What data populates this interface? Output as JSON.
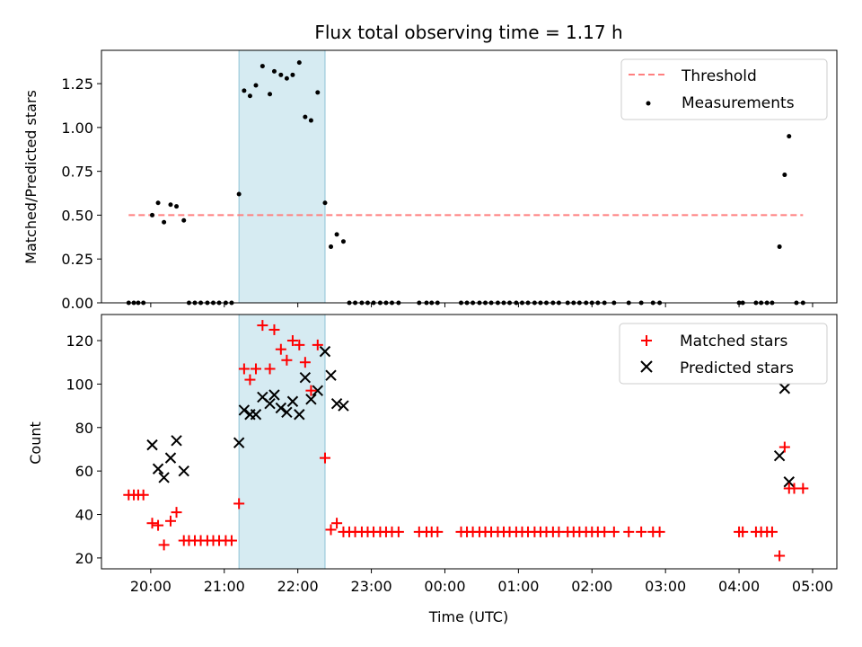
{
  "chart_data": [
    {
      "type": "scatter",
      "title": "Flux total observing time = 1.17 h",
      "xlabel": "",
      "ylabel": "Matched/Predicted stars",
      "xlim": [
        19.33,
        29.33
      ],
      "ylim": [
        0,
        1.44
      ],
      "yticks": [
        0.0,
        0.25,
        0.5,
        0.75,
        1.0,
        1.25
      ],
      "ytick_labels": [
        "0.00",
        "0.25",
        "0.50",
        "0.75",
        "1.00",
        "1.25"
      ],
      "highlight_span": [
        21.2,
        22.37
      ],
      "legend": {
        "position": "top-right",
        "entries": [
          "Threshold",
          "Measurements"
        ]
      },
      "threshold": {
        "name": "Threshold",
        "x": [
          19.7,
          28.87
        ],
        "y": 0.5,
        "color": "#ff7f7f"
      },
      "series": [
        {
          "name": "Measurements",
          "color": "#000000",
          "points": [
            [
              19.7,
              0
            ],
            [
              19.77,
              0
            ],
            [
              19.83,
              0
            ],
            [
              19.9,
              0
            ],
            [
              20.02,
              0.5
            ],
            [
              20.1,
              0.57
            ],
            [
              20.18,
              0.46
            ],
            [
              20.27,
              0.56
            ],
            [
              20.35,
              0.55
            ],
            [
              20.45,
              0.47
            ],
            [
              20.52,
              0
            ],
            [
              20.6,
              0
            ],
            [
              20.68,
              0
            ],
            [
              20.77,
              0
            ],
            [
              20.85,
              0
            ],
            [
              20.93,
              0
            ],
            [
              21.02,
              0
            ],
            [
              21.1,
              0
            ],
            [
              21.2,
              0.62
            ],
            [
              21.27,
              1.21
            ],
            [
              21.35,
              1.18
            ],
            [
              21.43,
              1.24
            ],
            [
              21.52,
              1.35
            ],
            [
              21.62,
              1.19
            ],
            [
              21.68,
              1.32
            ],
            [
              21.77,
              1.3
            ],
            [
              21.85,
              1.28
            ],
            [
              21.93,
              1.3
            ],
            [
              22.02,
              1.37
            ],
            [
              22.1,
              1.06
            ],
            [
              22.18,
              1.04
            ],
            [
              22.27,
              1.2
            ],
            [
              22.37,
              0.57
            ],
            [
              22.45,
              0.32
            ],
            [
              22.53,
              0.39
            ],
            [
              22.62,
              0.35
            ],
            [
              22.7,
              0
            ],
            [
              22.78,
              0
            ],
            [
              22.87,
              0
            ],
            [
              22.95,
              0
            ],
            [
              23.03,
              0
            ],
            [
              23.12,
              0
            ],
            [
              23.2,
              0
            ],
            [
              23.28,
              0
            ],
            [
              23.37,
              0
            ],
            [
              23.65,
              0
            ],
            [
              23.75,
              0
            ],
            [
              23.82,
              0
            ],
            [
              23.9,
              0
            ],
            [
              24.22,
              0
            ],
            [
              24.3,
              0
            ],
            [
              24.38,
              0
            ],
            [
              24.47,
              0
            ],
            [
              24.55,
              0
            ],
            [
              24.63,
              0
            ],
            [
              24.72,
              0
            ],
            [
              24.8,
              0
            ],
            [
              24.88,
              0
            ],
            [
              24.97,
              0
            ],
            [
              25.05,
              0
            ],
            [
              25.13,
              0
            ],
            [
              25.22,
              0
            ],
            [
              25.3,
              0
            ],
            [
              25.38,
              0
            ],
            [
              25.47,
              0
            ],
            [
              25.55,
              0
            ],
            [
              25.67,
              0
            ],
            [
              25.75,
              0
            ],
            [
              25.83,
              0
            ],
            [
              25.92,
              0
            ],
            [
              26.0,
              0
            ],
            [
              26.08,
              0
            ],
            [
              26.17,
              0
            ],
            [
              26.3,
              0
            ],
            [
              26.5,
              0
            ],
            [
              26.67,
              0
            ],
            [
              26.83,
              0
            ],
            [
              26.92,
              0
            ],
            [
              28.0,
              0
            ],
            [
              28.05,
              0
            ],
            [
              28.23,
              0
            ],
            [
              28.3,
              0
            ],
            [
              28.38,
              0
            ],
            [
              28.45,
              0
            ],
            [
              28.55,
              0.32
            ],
            [
              28.62,
              0.73
            ],
            [
              28.68,
              0.95
            ],
            [
              28.78,
              0
            ],
            [
              28.87,
              0
            ]
          ]
        }
      ]
    },
    {
      "type": "scatter",
      "title": "",
      "xlabel": "Time (UTC)",
      "ylabel": "Count",
      "xlim": [
        19.33,
        29.33
      ],
      "ylim": [
        15,
        132
      ],
      "yticks": [
        20,
        40,
        60,
        80,
        100,
        120
      ],
      "ytick_labels": [
        "20",
        "40",
        "60",
        "80",
        "100",
        "120"
      ],
      "xticks": [
        20,
        21,
        22,
        23,
        24,
        25,
        26,
        27,
        28,
        29
      ],
      "xtick_labels": [
        "20:00",
        "21:00",
        "22:00",
        "23:00",
        "00:00",
        "01:00",
        "02:00",
        "03:00",
        "04:00",
        "05:00"
      ],
      "highlight_span": [
        21.2,
        22.37
      ],
      "legend": {
        "position": "top-right",
        "entries": [
          "Matched stars",
          "Predicted stars"
        ]
      },
      "series": [
        {
          "name": "Matched stars",
          "marker": "plus",
          "color": "#ff0000",
          "points": [
            [
              19.7,
              49
            ],
            [
              19.77,
              49
            ],
            [
              19.83,
              49
            ],
            [
              19.9,
              49
            ],
            [
              20.02,
              36
            ],
            [
              20.1,
              35
            ],
            [
              20.18,
              26
            ],
            [
              20.27,
              37
            ],
            [
              20.35,
              41
            ],
            [
              20.45,
              28
            ],
            [
              20.52,
              28
            ],
            [
              20.6,
              28
            ],
            [
              20.68,
              28
            ],
            [
              20.77,
              28
            ],
            [
              20.85,
              28
            ],
            [
              20.93,
              28
            ],
            [
              21.02,
              28
            ],
            [
              21.1,
              28
            ],
            [
              21.2,
              45
            ],
            [
              21.27,
              107
            ],
            [
              21.35,
              102
            ],
            [
              21.43,
              107
            ],
            [
              21.52,
              127
            ],
            [
              21.62,
              107
            ],
            [
              21.68,
              125
            ],
            [
              21.77,
              116
            ],
            [
              21.85,
              111
            ],
            [
              21.93,
              120
            ],
            [
              22.02,
              118
            ],
            [
              22.1,
              110
            ],
            [
              22.18,
              97
            ],
            [
              22.27,
              118
            ],
            [
              22.37,
              66
            ],
            [
              22.45,
              33
            ],
            [
              22.53,
              36
            ],
            [
              22.62,
              32
            ],
            [
              22.7,
              32
            ],
            [
              22.78,
              32
            ],
            [
              22.87,
              32
            ],
            [
              22.95,
              32
            ],
            [
              23.03,
              32
            ],
            [
              23.12,
              32
            ],
            [
              23.2,
              32
            ],
            [
              23.28,
              32
            ],
            [
              23.37,
              32
            ],
            [
              23.65,
              32
            ],
            [
              23.75,
              32
            ],
            [
              23.82,
              32
            ],
            [
              23.9,
              32
            ],
            [
              24.22,
              32
            ],
            [
              24.3,
              32
            ],
            [
              24.38,
              32
            ],
            [
              24.47,
              32
            ],
            [
              24.55,
              32
            ],
            [
              24.63,
              32
            ],
            [
              24.72,
              32
            ],
            [
              24.8,
              32
            ],
            [
              24.88,
              32
            ],
            [
              24.97,
              32
            ],
            [
              25.05,
              32
            ],
            [
              25.13,
              32
            ],
            [
              25.22,
              32
            ],
            [
              25.3,
              32
            ],
            [
              25.38,
              32
            ],
            [
              25.47,
              32
            ],
            [
              25.55,
              32
            ],
            [
              25.67,
              32
            ],
            [
              25.75,
              32
            ],
            [
              25.83,
              32
            ],
            [
              25.92,
              32
            ],
            [
              26.0,
              32
            ],
            [
              26.08,
              32
            ],
            [
              26.17,
              32
            ],
            [
              26.3,
              32
            ],
            [
              26.5,
              32
            ],
            [
              26.67,
              32
            ],
            [
              26.83,
              32
            ],
            [
              26.92,
              32
            ],
            [
              28.0,
              32
            ],
            [
              28.05,
              32
            ],
            [
              28.23,
              32
            ],
            [
              28.3,
              32
            ],
            [
              28.38,
              32
            ],
            [
              28.45,
              32
            ],
            [
              28.55,
              21
            ],
            [
              28.62,
              71
            ],
            [
              28.68,
              52
            ],
            [
              28.75,
              52
            ],
            [
              28.87,
              52
            ]
          ]
        },
        {
          "name": "Predicted stars",
          "marker": "x",
          "color": "#000000",
          "points": [
            [
              20.02,
              72
            ],
            [
              20.1,
              61
            ],
            [
              20.18,
              57
            ],
            [
              20.27,
              66
            ],
            [
              20.35,
              74
            ],
            [
              20.45,
              60
            ],
            [
              21.2,
              73
            ],
            [
              21.27,
              88
            ],
            [
              21.35,
              86
            ],
            [
              21.43,
              86
            ],
            [
              21.52,
              94
            ],
            [
              21.62,
              91
            ],
            [
              21.68,
              95
            ],
            [
              21.77,
              89
            ],
            [
              21.85,
              87
            ],
            [
              21.93,
              92
            ],
            [
              22.02,
              86
            ],
            [
              22.1,
              103
            ],
            [
              22.18,
              93
            ],
            [
              22.27,
              97
            ],
            [
              22.37,
              115
            ],
            [
              22.45,
              104
            ],
            [
              22.53,
              91
            ],
            [
              22.62,
              90
            ],
            [
              28.55,
              67
            ],
            [
              28.62,
              98
            ],
            [
              28.68,
              55
            ]
          ]
        }
      ]
    }
  ]
}
